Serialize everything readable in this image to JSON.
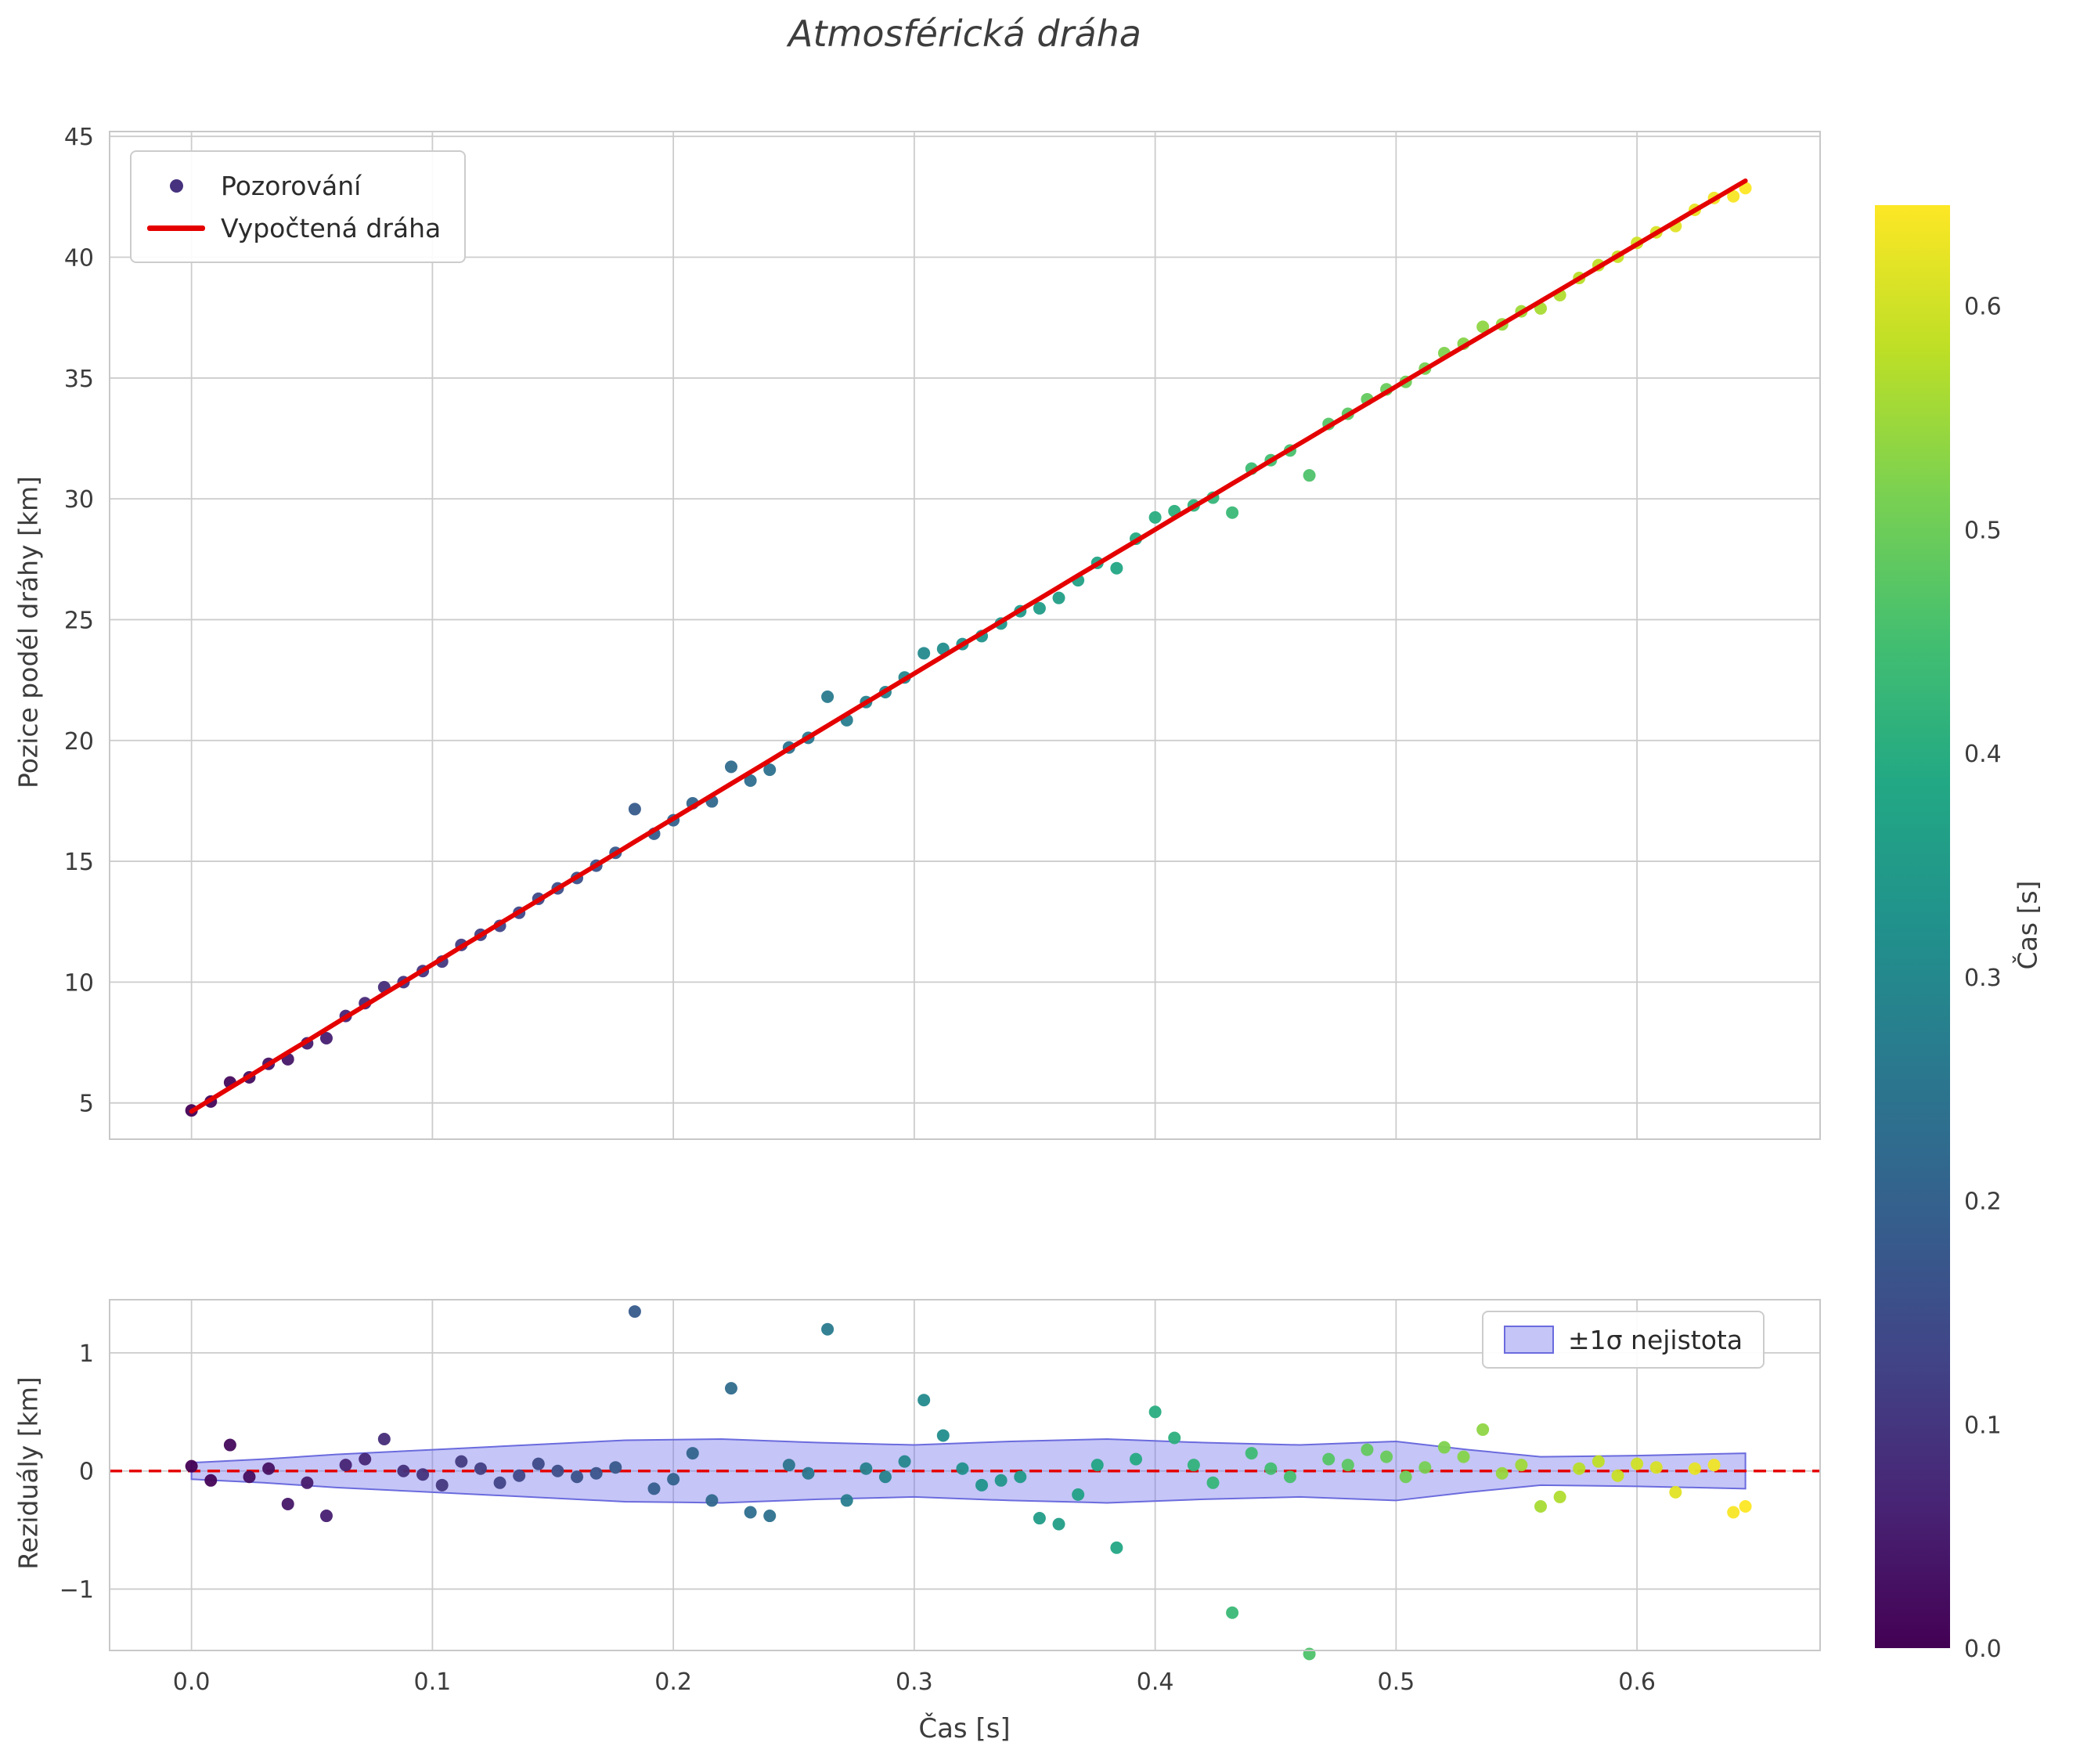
{
  "chart_data": {
    "type": "scatter",
    "title": "Atmosférická dráha",
    "xticks": [
      0.0,
      0.1,
      0.2,
      0.3,
      0.4,
      0.5,
      0.6
    ],
    "colors": {
      "fit_line": "#e50000",
      "zero_line": "#e50000",
      "band_fill": "rgba(110,110,235,0.40)",
      "band_edge": "#6b6bde",
      "grid": "#cccccc",
      "spine": "#c8c8c8",
      "tick": "#3c3c3c",
      "title": "#3d3d3d",
      "legend_dot": "#46327e"
    },
    "top": {
      "ylabel": "Pozice podél dráhy [km]",
      "ylim": [
        3.5,
        45.2
      ],
      "yticks": [
        5,
        10,
        15,
        20,
        25,
        30,
        35,
        40,
        45
      ],
      "legend_obs": "Pozorování",
      "legend_fit": "Vypočtená dráha"
    },
    "bottom": {
      "ylabel": "Reziduály [km]",
      "xlabel": "Čas [s]",
      "ylim": [
        -1.52,
        1.45
      ],
      "yticks": [
        -1,
        0,
        1
      ],
      "legend_band": "±1σ nejistota",
      "band": {
        "t": [
          0.0,
          0.03,
          0.06,
          0.1,
          0.14,
          0.18,
          0.22,
          0.26,
          0.3,
          0.34,
          0.38,
          0.42,
          0.46,
          0.5,
          0.53,
          0.56,
          0.6,
          0.645
        ],
        "sigma": [
          0.07,
          0.1,
          0.14,
          0.18,
          0.22,
          0.26,
          0.27,
          0.24,
          0.22,
          0.25,
          0.27,
          0.24,
          0.22,
          0.25,
          0.18,
          0.12,
          0.13,
          0.15
        ]
      }
    },
    "colorbar": {
      "label": "Čas [s]",
      "vmin": 0.0,
      "vmax": 0.645,
      "ticks": [
        0.0,
        0.1,
        0.2,
        0.3,
        0.4,
        0.5,
        0.6
      ],
      "viridis_stops": [
        [
          0.0,
          "#440154"
        ],
        [
          0.1,
          "#482475"
        ],
        [
          0.2,
          "#414487"
        ],
        [
          0.3,
          "#355f8d"
        ],
        [
          0.4,
          "#2a788e"
        ],
        [
          0.5,
          "#21918c"
        ],
        [
          0.6,
          "#22a884"
        ],
        [
          0.7,
          "#44bf70"
        ],
        [
          0.8,
          "#7ad151"
        ],
        [
          0.9,
          "#bddf26"
        ],
        [
          1.0,
          "#fde725"
        ]
      ]
    },
    "observations": {
      "t": [
        0.0,
        0.008,
        0.016,
        0.024,
        0.032,
        0.04,
        0.048,
        0.056,
        0.064,
        0.072,
        0.08,
        0.088,
        0.096,
        0.104,
        0.112,
        0.12,
        0.128,
        0.136,
        0.144,
        0.152,
        0.16,
        0.168,
        0.176,
        0.184,
        0.192,
        0.2,
        0.208,
        0.216,
        0.224,
        0.232,
        0.24,
        0.248,
        0.256,
        0.264,
        0.272,
        0.28,
        0.288,
        0.296,
        0.304,
        0.312,
        0.32,
        0.328,
        0.336,
        0.344,
        0.352,
        0.36,
        0.368,
        0.376,
        0.384,
        0.392,
        0.4,
        0.408,
        0.416,
        0.424,
        0.432,
        0.44,
        0.448,
        0.456,
        0.464,
        0.472,
        0.48,
        0.488,
        0.496,
        0.504,
        0.512,
        0.52,
        0.528,
        0.536,
        0.544,
        0.552,
        0.56,
        0.568,
        0.576,
        0.584,
        0.592,
        0.6,
        0.608,
        0.616,
        0.624,
        0.632,
        0.64,
        0.645
      ],
      "position": [
        4.69,
        5.06,
        5.85,
        6.06,
        6.62,
        6.81,
        7.47,
        7.68,
        8.6,
        9.13,
        9.79,
        10.0,
        10.46,
        10.85,
        11.54,
        11.96,
        12.33,
        12.87,
        13.45,
        13.88,
        14.31,
        14.82,
        15.35,
        17.16,
        16.14,
        16.7,
        17.4,
        17.48,
        18.91,
        18.34,
        18.79,
        19.71,
        20.11,
        21.81,
        20.84,
        21.59,
        22.0,
        22.61,
        23.61,
        23.79,
        23.99,
        24.32,
        24.84,
        25.35,
        25.47,
        25.9,
        26.63,
        27.35,
        27.13,
        28.35,
        29.23,
        29.49,
        29.73,
        30.05,
        29.43,
        31.25,
        31.6,
        32.0,
        30.97,
        33.1,
        33.52,
        34.12,
        34.53,
        34.84,
        35.39,
        36.03,
        36.42,
        37.12,
        37.22,
        37.76,
        37.88,
        38.43,
        39.14,
        39.67,
        40.02,
        40.59,
        41.03,
        41.29,
        41.96,
        42.45,
        42.52,
        42.86
      ],
      "residual": [
        0.04,
        -0.08,
        0.22,
        -0.05,
        0.02,
        -0.28,
        -0.1,
        -0.38,
        0.05,
        0.1,
        0.27,
        0.0,
        -0.03,
        -0.12,
        0.08,
        0.02,
        -0.1,
        -0.04,
        0.06,
        0.0,
        -0.05,
        -0.02,
        0.03,
        1.35,
        -0.15,
        -0.07,
        0.15,
        -0.25,
        0.7,
        -0.35,
        -0.38,
        0.05,
        -0.02,
        1.2,
        -0.25,
        0.02,
        -0.05,
        0.08,
        0.6,
        0.3,
        0.02,
        -0.12,
        -0.08,
        -0.05,
        -0.4,
        -0.45,
        -0.2,
        0.05,
        -0.65,
        0.1,
        0.5,
        0.28,
        0.05,
        -0.1,
        -1.2,
        0.15,
        0.02,
        -0.05,
        -1.55,
        0.1,
        0.05,
        0.18,
        0.12,
        -0.05,
        0.03,
        0.2,
        0.12,
        0.35,
        -0.02,
        0.05,
        -0.3,
        -0.22,
        0.02,
        0.08,
        -0.04,
        0.06,
        0.03,
        -0.18,
        0.02,
        0.05,
        -0.35,
        -0.3
      ]
    }
  }
}
